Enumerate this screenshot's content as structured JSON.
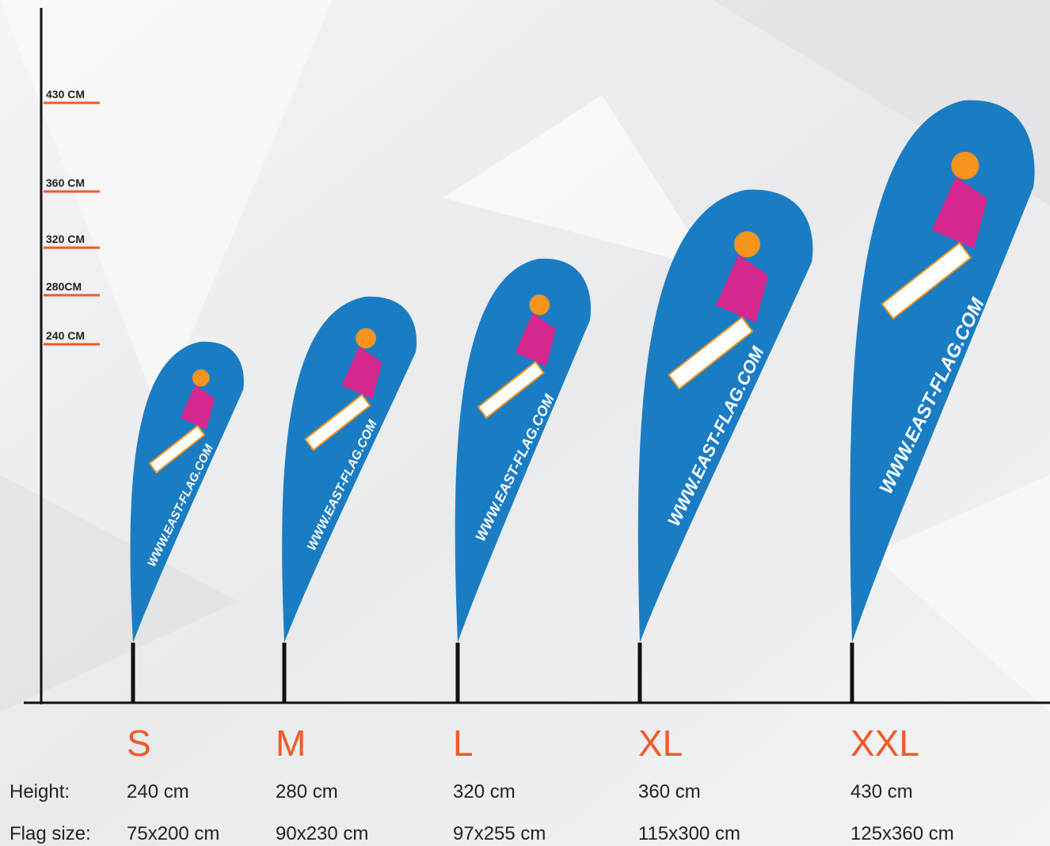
{
  "scale": [
    "430 CM",
    "360 CM",
    "320 CM",
    "280CM",
    "240 CM"
  ],
  "row_labels": {
    "height": "Height:",
    "flag_size": "Flag size:"
  },
  "flag_text": "WWW.EAST-FLAG.COM",
  "sizes": [
    {
      "name": "S",
      "height": "240 cm",
      "flag_size": "75x200 cm"
    },
    {
      "name": "M",
      "height": "280 cm",
      "flag_size": "90x230 cm"
    },
    {
      "name": "L",
      "height": "320 cm",
      "flag_size": "97x255 cm"
    },
    {
      "name": "XL",
      "height": "360 cm",
      "flag_size": "115x300 cm"
    },
    {
      "name": "XXL",
      "height": "430 cm",
      "flag_size": "125x360 cm"
    }
  ]
}
